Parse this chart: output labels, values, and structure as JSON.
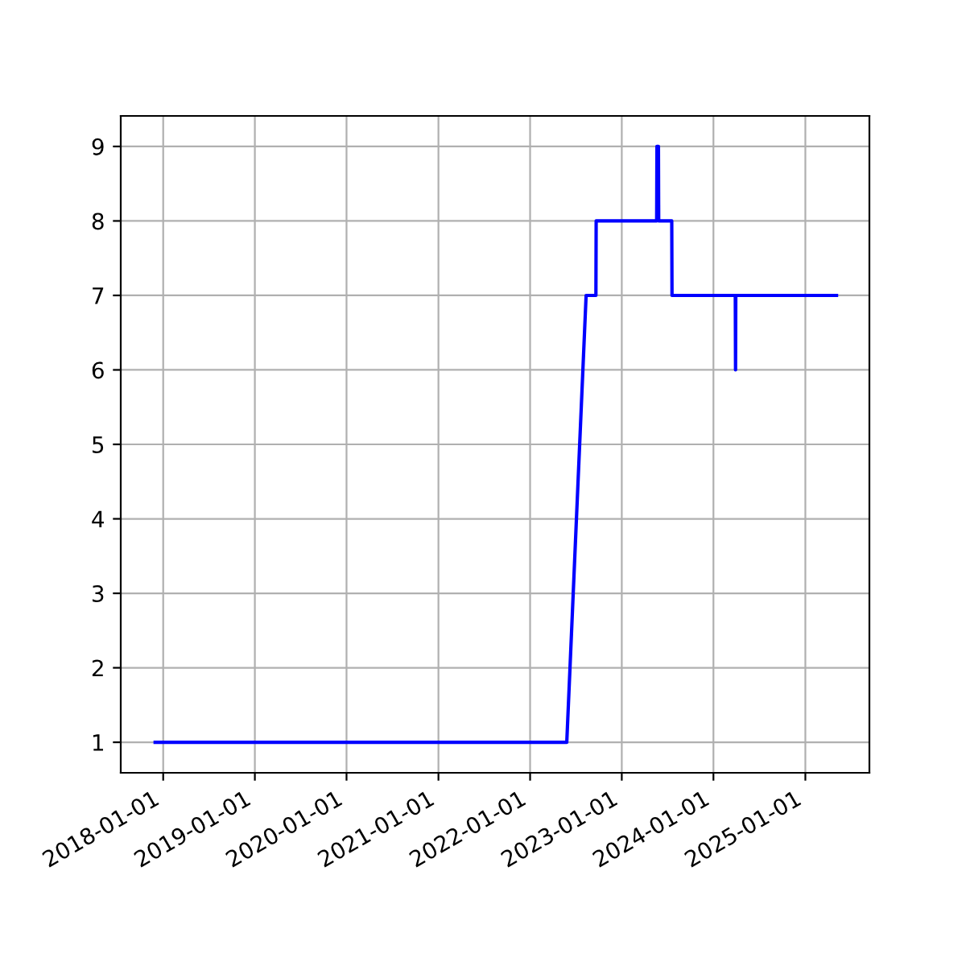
{
  "chart_data": {
    "type": "line",
    "x": [
      "2017-11-30",
      "2022-05-27",
      "2022-08-12",
      "2022-09-20",
      "2022-09-21",
      "2023-05-20",
      "2023-05-21",
      "2023-05-27",
      "2023-05-28",
      "2023-07-19",
      "2023-07-20",
      "2024-03-28",
      "2024-03-29",
      "2024-03-30",
      "2025-05-05"
    ],
    "series": [
      {
        "color": "#0000ff",
        "values": [
          1,
          1,
          7,
          7,
          8,
          8,
          9,
          9,
          8,
          8,
          7,
          7,
          6,
          7,
          7
        ]
      }
    ],
    "xlim": [
      "2017-07-16",
      "2025-09-13"
    ],
    "xticks": [
      "2018-01-01",
      "2019-01-01",
      "2020-01-01",
      "2021-01-01",
      "2022-01-01",
      "2023-01-01",
      "2024-01-01",
      "2025-01-01"
    ],
    "ylim": [
      0.59,
      9.41
    ],
    "yticks": [
      1,
      2,
      3,
      4,
      5,
      6,
      7,
      8,
      9
    ],
    "grid": true,
    "marker": "none",
    "line_style": "solid"
  }
}
